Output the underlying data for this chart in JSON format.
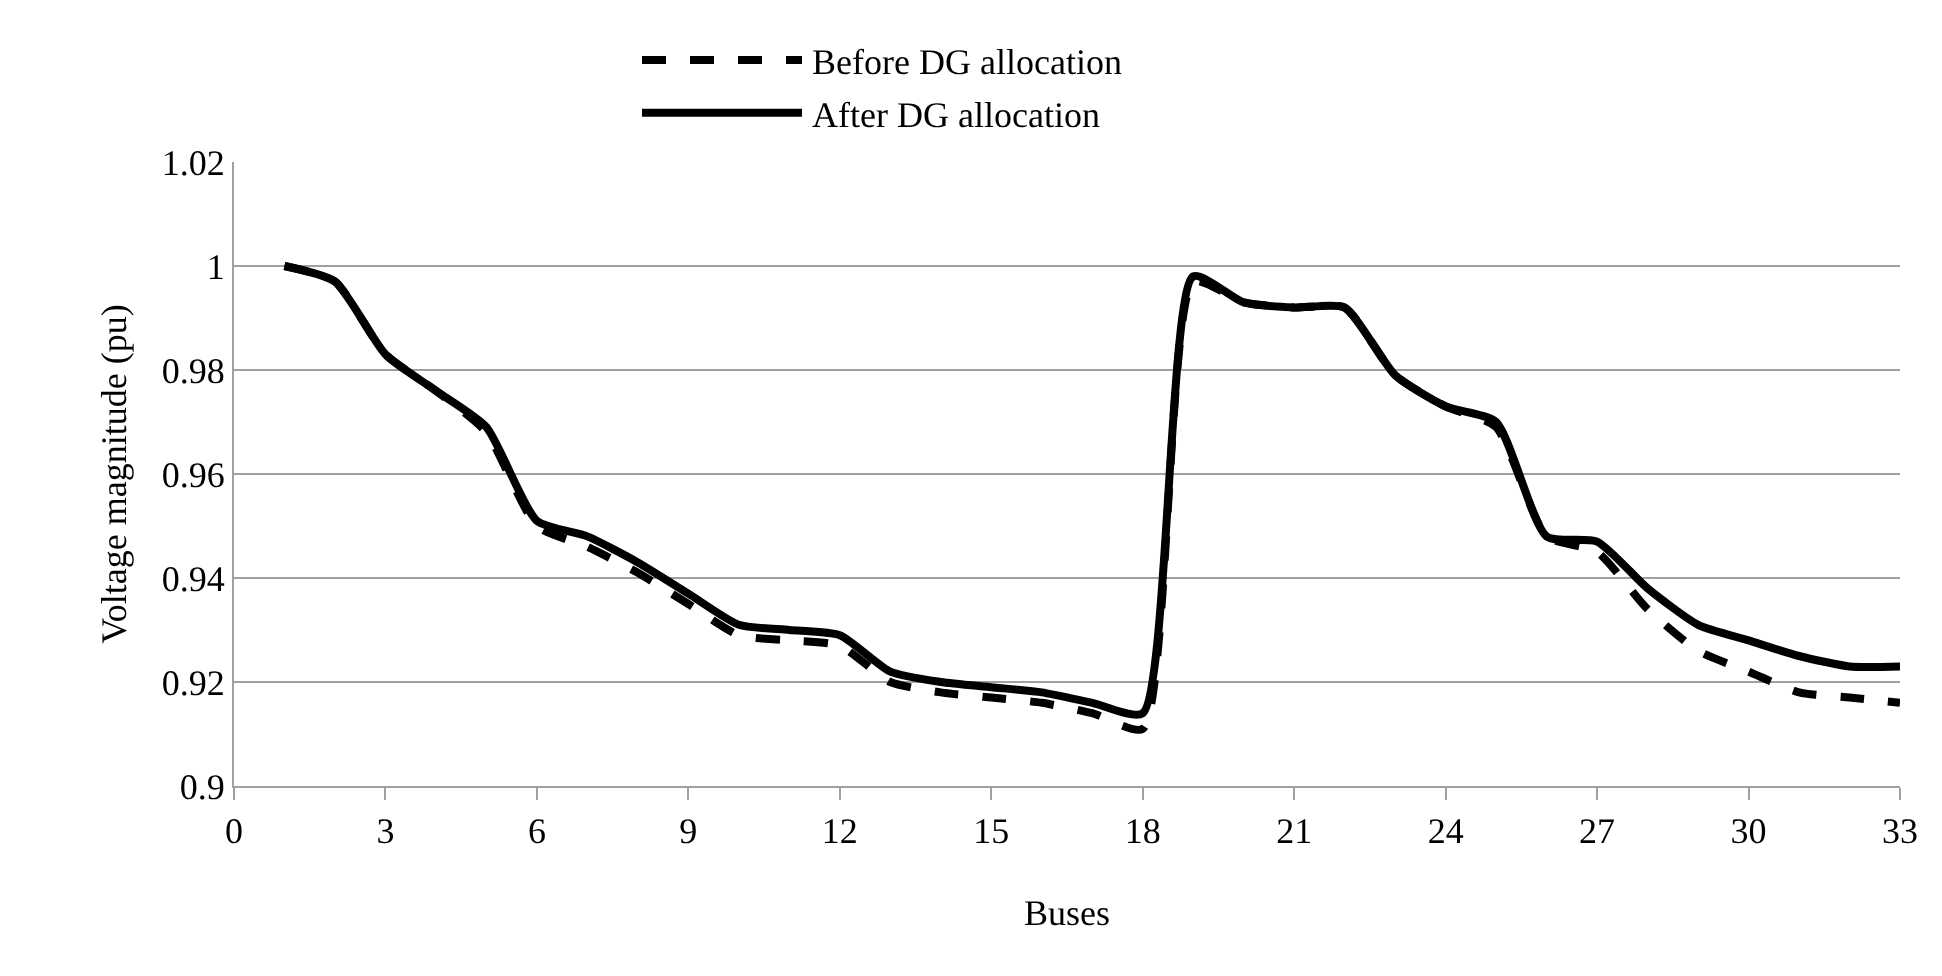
{
  "chart_data": {
    "type": "line",
    "xlabel": "Buses",
    "ylabel": "Voltage magnitude (pu)",
    "x": [
      1,
      2,
      3,
      4,
      5,
      6,
      7,
      8,
      9,
      10,
      11,
      12,
      13,
      14,
      15,
      16,
      17,
      18,
      19,
      20,
      21,
      22,
      23,
      24,
      25,
      26,
      27,
      28,
      29,
      30,
      31,
      32,
      33
    ],
    "series": [
      {
        "name": "Before DG allocation",
        "color": "#000000",
        "line_style": "dashed",
        "values": [
          1,
          0.997,
          0.983,
          0.976,
          0.968,
          0.95,
          0.946,
          0.941,
          0.935,
          0.929,
          0.928,
          0.927,
          0.92,
          0.918,
          0.917,
          0.916,
          0.914,
          0.911,
          0.997,
          0.993,
          0.992,
          0.992,
          0.979,
          0.973,
          0.969,
          0.948,
          0.945,
          0.934,
          0.926,
          0.922,
          0.918,
          0.917,
          0.916
        ]
      },
      {
        "name": "After DG allocation",
        "color": "#000000",
        "line_style": "solid",
        "values": [
          1,
          0.997,
          0.983,
          0.976,
          0.969,
          0.951,
          0.948,
          0.943,
          0.937,
          0.931,
          0.93,
          0.929,
          0.922,
          0.92,
          0.919,
          0.918,
          0.916,
          0.914,
          0.998,
          0.993,
          0.992,
          0.992,
          0.979,
          0.973,
          0.97,
          0.948,
          0.947,
          0.938,
          0.931,
          0.928,
          0.925,
          0.923,
          0.923
        ]
      }
    ],
    "xlim": [
      0,
      33
    ],
    "xticks": [
      0,
      3,
      6,
      9,
      12,
      15,
      18,
      21,
      24,
      27,
      30,
      33
    ],
    "ylim": [
      0.9,
      1.02
    ],
    "yticks": [
      0.9,
      0.92,
      0.94,
      0.96,
      0.98,
      1,
      1.02
    ],
    "grid": "y",
    "legend": "top",
    "marker": "none"
  }
}
